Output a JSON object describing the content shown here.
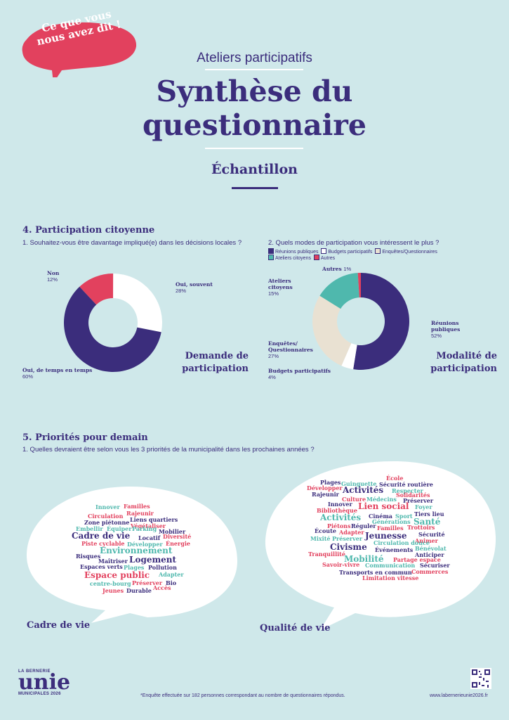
{
  "badge": {
    "line1": "Ce que vous",
    "line2": "nous avez dit !"
  },
  "header": {
    "kicker": "Ateliers participatifs",
    "title_line1": "Synthèse du",
    "title_line2": "questionnaire",
    "subtitle": "Échantillon"
  },
  "colors": {
    "background": "#cfe8ea",
    "purple": "#3b2d7c",
    "teal": "#4fb8ad",
    "red": "#e2415e",
    "beige": "#e9e1d2",
    "white": "#ffffff"
  },
  "section4": {
    "title": "4. Participation citoyenne",
    "q1": {
      "question": "1. Souhaitez-vous être davantage impliqué(e) dans les décisions locales ?",
      "caption_line1": "Demande de",
      "caption_line2": "participation",
      "labels": [
        {
          "name": "Non",
          "pct": "12%"
        },
        {
          "name": "Oui, souvent",
          "pct": "28%"
        },
        {
          "name": "Oui, de temps en temps",
          "pct": "60%"
        }
      ]
    },
    "q2": {
      "question": "2. Quels modes de participation vous intéressent le plus ?",
      "legend": [
        "Réunions publiques",
        "Budgets participatifs",
        "Enquêtes/Questionnaires",
        "Ateliers citoyens",
        "Autres"
      ],
      "caption_line1": "Modalité de",
      "caption_line2": "participation",
      "labels": [
        {
          "name": "Autres",
          "pct": "1%"
        },
        {
          "name_line1": "Ateliers",
          "name_line2": "citoyens",
          "pct": "15%"
        },
        {
          "name_line1": "Réunions",
          "name_line2": "publiques",
          "pct": "52%"
        },
        {
          "name_line1": "Enquêtes/",
          "name_line2": "Questionnaires",
          "pct": "27%"
        },
        {
          "name": "Budgets participatifs",
          "pct": "4%"
        }
      ]
    }
  },
  "chart_data": [
    {
      "type": "pie",
      "title": "Demande de participation",
      "categories": [
        "Non",
        "Oui, souvent",
        "Oui, de temps en temps"
      ],
      "values": [
        12,
        28,
        60
      ],
      "colors": [
        "#e2415e",
        "#ffffff",
        "#3b2d7c"
      ]
    },
    {
      "type": "pie",
      "title": "Modalité de participation",
      "categories": [
        "Réunions publiques",
        "Budgets participatifs",
        "Enquêtes/Questionnaires",
        "Ateliers citoyens",
        "Autres"
      ],
      "values": [
        52,
        4,
        27,
        15,
        1
      ],
      "colors": [
        "#3b2d7c",
        "#ffffff",
        "#e9e1d2",
        "#4fb8ad",
        "#e2415e"
      ]
    }
  ],
  "section5": {
    "title": "5. Priorités pour demain",
    "question": "1.  Quelles devraient être selon vous les 3 priorités de la municipalité dans les prochaines années ?",
    "cloud1_label": "Cadre de vie",
    "cloud2_label": "Qualité de vie",
    "cloud1_words": [
      "Innover",
      "Familles",
      "Rajeunir",
      "Circulation",
      "Liens quartiers",
      "Zone piétonne",
      "Végétaliser",
      "Embellir",
      "Équiper",
      "Parking",
      "Mobilier",
      "Cadre de vie",
      "Locatif",
      "Diversité",
      "Piste cyclable",
      "Développer",
      "Énergie",
      "Environnement",
      "Risques",
      "Maîtriser",
      "Logement",
      "Espaces verts",
      "Plages",
      "Pollution",
      "Espace public",
      "Adapter",
      "centre-bourg",
      "Préserver",
      "Bio",
      "Jeunes",
      "Durable",
      "Accès"
    ],
    "cloud2_words": [
      "École",
      "Plages",
      "Guinguette",
      "Sécurité routière",
      "Développer",
      "Activités",
      "Respecter",
      "Rajeunir",
      "Solidarités",
      "Culture",
      "Médecins",
      "Préserver",
      "Innover",
      "Lien social",
      "Foyer",
      "Bibliothèque",
      "Tiers lieu",
      "Activités",
      "Cinéma",
      "Sport",
      "Générations",
      "Santé",
      "Piétons",
      "Réguler",
      "Écoute",
      "Adapter",
      "Familles",
      "Trottoirs",
      "Mixité",
      "Préserver",
      "Jeunesse",
      "Sécurité",
      "Animer",
      "Circulation douce",
      "Civisme",
      "Événements",
      "Bénévolat",
      "Tranquillité",
      "Mobilité",
      "Anticiper",
      "Partage espace",
      "Savoir-vivre",
      "Communication",
      "Sécuriser",
      "Transports en commun",
      "Commerces",
      "Limitation vitesse"
    ]
  },
  "footer": {
    "logo_top": "LA BERNERIE",
    "logo_main": "unie",
    "logo_bottom": "MUNICIPALES 2026",
    "note": "*Enquête effectuée sur 182 personnes correspondant au nombre de questionnaires répondus.",
    "url": "www.labernerieunie2026.fr"
  }
}
